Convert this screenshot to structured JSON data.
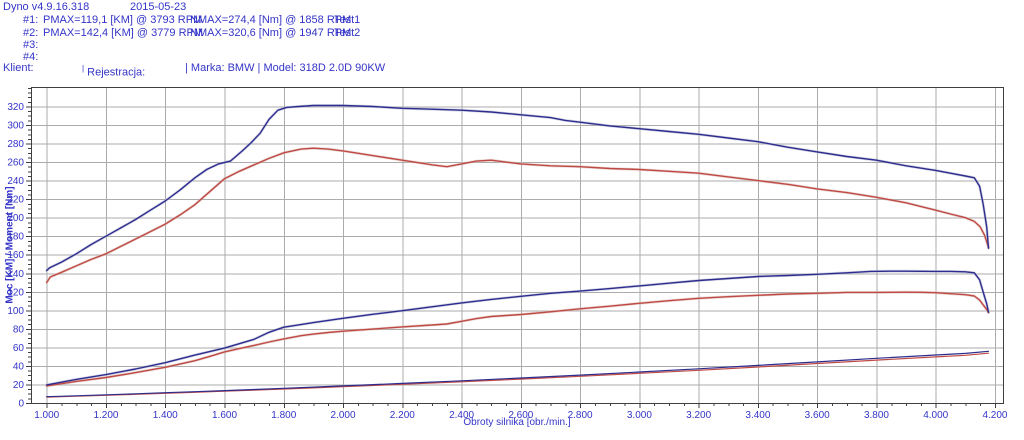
{
  "header": {
    "app_version": "Dyno v4.9.16.318",
    "date": "2015-05-23",
    "runs": [
      {
        "id": "#1:",
        "pmax": "PMAX=119,1 [KM] @ 3793 RPM",
        "nmax": "NMAX=274,4 [Nm] @ 1858 RPM",
        "name": "Test1"
      },
      {
        "id": "#2:",
        "pmax": "PMAX=142,4 [KM] @ 3779 RPM",
        "nmax": "NMAX=320,6 [Nm] @ 1947 RPM",
        "name": "Test2"
      },
      {
        "id": "#3:",
        "pmax": "",
        "nmax": "",
        "name": ""
      },
      {
        "id": "#4:",
        "pmax": "",
        "nmax": "",
        "name": ""
      }
    ],
    "client_row": {
      "klient_label": "Klient:",
      "sep": "|",
      "rejestracja_label": "Rejestracja:",
      "vehicle": "| Marka: BMW | Model: 318D 2.0D 90KW"
    }
  },
  "colors": {
    "text_blue": "#3434c8",
    "curve_blue": "#2d2d8f",
    "curve_red": "#bf4a44",
    "halo_blue": "#b4b4cf",
    "halo_red": "#d9b9b6",
    "grid": "#ababab",
    "frame": "#3f3f3f"
  },
  "chart_data": {
    "type": "line",
    "title": "",
    "xlabel": "Obroty silnika [obr./min.]",
    "ylabel": "Moc [KM] / Moment [Nm]",
    "xlim": [
      947,
      4227
    ],
    "ylim": [
      0,
      341
    ],
    "x_ticks": [
      1000,
      1200,
      1400,
      1600,
      1800,
      2000,
      2200,
      2400,
      2600,
      2800,
      3000,
      3200,
      3400,
      3600,
      3800,
      4000,
      4200
    ],
    "x_tick_labels": [
      "1.000",
      "1.200",
      "1.400",
      "1.600",
      "1.800",
      "2.000",
      "2.200",
      "2.400",
      "2.600",
      "2.800",
      "3.000",
      "3.200",
      "3.400",
      "3.600",
      "3.800",
      "4.000",
      "4.200"
    ],
    "y_ticks": [
      0,
      20,
      40,
      60,
      80,
      100,
      120,
      140,
      160,
      180,
      200,
      220,
      240,
      260,
      280,
      300,
      320
    ],
    "x_minor_step": 50,
    "y_minor_step": 5,
    "grid": true,
    "legend_position": "none",
    "series": [
      {
        "name": "Test2",
        "quantity": "torque",
        "unit": "Nm",
        "color_key": "blue",
        "points": [
          [
            1000,
            143
          ],
          [
            1010,
            146
          ],
          [
            1050,
            152
          ],
          [
            1100,
            161
          ],
          [
            1150,
            171
          ],
          [
            1200,
            180
          ],
          [
            1250,
            189
          ],
          [
            1300,
            198
          ],
          [
            1350,
            208
          ],
          [
            1400,
            218
          ],
          [
            1450,
            230
          ],
          [
            1500,
            243
          ],
          [
            1540,
            252
          ],
          [
            1580,
            258
          ],
          [
            1620,
            261
          ],
          [
            1660,
            272
          ],
          [
            1690,
            281
          ],
          [
            1720,
            291
          ],
          [
            1750,
            306
          ],
          [
            1780,
            316
          ],
          [
            1810,
            319
          ],
          [
            1850,
            320
          ],
          [
            1900,
            321
          ],
          [
            1950,
            321
          ],
          [
            2000,
            321
          ],
          [
            2100,
            320
          ],
          [
            2200,
            318
          ],
          [
            2300,
            317
          ],
          [
            2400,
            316
          ],
          [
            2500,
            314
          ],
          [
            2600,
            311
          ],
          [
            2700,
            308
          ],
          [
            2750,
            305
          ],
          [
            2800,
            303
          ],
          [
            2900,
            299
          ],
          [
            3000,
            296
          ],
          [
            3100,
            293
          ],
          [
            3200,
            290
          ],
          [
            3300,
            286
          ],
          [
            3400,
            282
          ],
          [
            3500,
            276
          ],
          [
            3600,
            271
          ],
          [
            3700,
            266
          ],
          [
            3800,
            262
          ],
          [
            3900,
            256
          ],
          [
            4000,
            251
          ],
          [
            4050,
            248
          ],
          [
            4100,
            245
          ],
          [
            4130,
            243
          ],
          [
            4148,
            234
          ],
          [
            4160,
            215
          ],
          [
            4172,
            190
          ],
          [
            4178,
            167
          ]
        ]
      },
      {
        "name": "Test1",
        "quantity": "torque",
        "unit": "Nm",
        "color_key": "red",
        "points": [
          [
            1000,
            130
          ],
          [
            1012,
            136
          ],
          [
            1050,
            141
          ],
          [
            1100,
            148
          ],
          [
            1150,
            155
          ],
          [
            1200,
            161
          ],
          [
            1250,
            169
          ],
          [
            1300,
            177
          ],
          [
            1350,
            185
          ],
          [
            1400,
            193
          ],
          [
            1450,
            203
          ],
          [
            1500,
            214
          ],
          [
            1550,
            228
          ],
          [
            1600,
            242
          ],
          [
            1650,
            250
          ],
          [
            1700,
            257
          ],
          [
            1750,
            264
          ],
          [
            1800,
            270
          ],
          [
            1858,
            274
          ],
          [
            1900,
            275
          ],
          [
            1950,
            274
          ],
          [
            2000,
            272
          ],
          [
            2100,
            267
          ],
          [
            2200,
            262
          ],
          [
            2300,
            257
          ],
          [
            2350,
            255
          ],
          [
            2400,
            258
          ],
          [
            2450,
            261
          ],
          [
            2500,
            262
          ],
          [
            2550,
            260
          ],
          [
            2600,
            258
          ],
          [
            2700,
            256
          ],
          [
            2800,
            255
          ],
          [
            2900,
            253
          ],
          [
            3000,
            252
          ],
          [
            3100,
            250
          ],
          [
            3200,
            248
          ],
          [
            3300,
            244
          ],
          [
            3400,
            240
          ],
          [
            3500,
            236
          ],
          [
            3600,
            231
          ],
          [
            3700,
            227
          ],
          [
            3800,
            222
          ],
          [
            3900,
            216
          ],
          [
            4000,
            208
          ],
          [
            4050,
            204
          ],
          [
            4100,
            200
          ],
          [
            4130,
            196
          ],
          [
            4150,
            190
          ],
          [
            4165,
            181
          ],
          [
            4178,
            168
          ]
        ]
      },
      {
        "name": "Test2",
        "quantity": "power",
        "unit": "KM",
        "color_key": "blue",
        "points": [
          [
            1000,
            19.5
          ],
          [
            1100,
            25.5
          ],
          [
            1200,
            30.6
          ],
          [
            1300,
            36.7
          ],
          [
            1400,
            43.5
          ],
          [
            1500,
            51.7
          ],
          [
            1600,
            59.2
          ],
          [
            1700,
            68.7
          ],
          [
            1750,
            76.3
          ],
          [
            1800,
            81.8
          ],
          [
            1850,
            84.3
          ],
          [
            1900,
            86.8
          ],
          [
            2000,
            91.4
          ],
          [
            2100,
            95.7
          ],
          [
            2200,
            99.6
          ],
          [
            2300,
            103.8
          ],
          [
            2400,
            108
          ],
          [
            2500,
            111.8
          ],
          [
            2600,
            115.1
          ],
          [
            2700,
            118.4
          ],
          [
            2800,
            120.8
          ],
          [
            2900,
            123.5
          ],
          [
            3000,
            126.4
          ],
          [
            3100,
            129.3
          ],
          [
            3200,
            132.2
          ],
          [
            3300,
            134.4
          ],
          [
            3400,
            136.5
          ],
          [
            3500,
            137.6
          ],
          [
            3600,
            138.9
          ],
          [
            3700,
            140.5
          ],
          [
            3780,
            142
          ],
          [
            3850,
            142.2
          ],
          [
            3900,
            142.2
          ],
          [
            4000,
            142
          ],
          [
            4050,
            142
          ],
          [
            4100,
            141.6
          ],
          [
            4130,
            140.5
          ],
          [
            4148,
            133
          ],
          [
            4160,
            120
          ],
          [
            4172,
            107
          ],
          [
            4178,
            98
          ]
        ]
      },
      {
        "name": "Test1",
        "quantity": "power",
        "unit": "KM",
        "color_key": "red",
        "points": [
          [
            1000,
            18.5
          ],
          [
            1100,
            23.3
          ],
          [
            1200,
            27.5
          ],
          [
            1300,
            32.8
          ],
          [
            1400,
            38.5
          ],
          [
            1500,
            45.7
          ],
          [
            1550,
            50.3
          ],
          [
            1600,
            55.1
          ],
          [
            1650,
            58.7
          ],
          [
            1700,
            62.2
          ],
          [
            1750,
            65.8
          ],
          [
            1800,
            69.2
          ],
          [
            1858,
            72.6
          ],
          [
            1900,
            74.4
          ],
          [
            1950,
            76.1
          ],
          [
            2000,
            77.5
          ],
          [
            2100,
            79.8
          ],
          [
            2200,
            82.1
          ],
          [
            2300,
            84.2
          ],
          [
            2350,
            85.3
          ],
          [
            2400,
            88.2
          ],
          [
            2450,
            91.1
          ],
          [
            2500,
            93.3
          ],
          [
            2550,
            94.4
          ],
          [
            2600,
            95.5
          ],
          [
            2700,
            98.4
          ],
          [
            2800,
            101.7
          ],
          [
            2900,
            104.5
          ],
          [
            3000,
            107.6
          ],
          [
            3100,
            110.4
          ],
          [
            3200,
            113
          ],
          [
            3300,
            114.7
          ],
          [
            3400,
            116.2
          ],
          [
            3500,
            117.6
          ],
          [
            3600,
            118.4
          ],
          [
            3700,
            119.3
          ],
          [
            3800,
            119.4
          ],
          [
            3900,
            119.6
          ],
          [
            3950,
            119.5
          ],
          [
            4000,
            119
          ],
          [
            4100,
            116.9
          ],
          [
            4130,
            115.5
          ],
          [
            4148,
            111
          ],
          [
            4160,
            106
          ],
          [
            4172,
            101
          ],
          [
            4178,
            97.5
          ]
        ]
      },
      {
        "name": "Test2",
        "quantity": "loss_power",
        "unit": "KM",
        "color_key": "blue",
        "points": [
          [
            1000,
            6.8
          ],
          [
            1100,
            7.8
          ],
          [
            1200,
            8.8
          ],
          [
            1300,
            9.9
          ],
          [
            1400,
            11.1
          ],
          [
            1500,
            12.2
          ],
          [
            1600,
            13.4
          ],
          [
            1700,
            14.6
          ],
          [
            1800,
            15.9
          ],
          [
            1900,
            17.2
          ],
          [
            2000,
            18.5
          ],
          [
            2200,
            21.2
          ],
          [
            2400,
            24
          ],
          [
            2600,
            27
          ],
          [
            2800,
            30.1
          ],
          [
            3000,
            33.4
          ],
          [
            3200,
            36.9
          ],
          [
            3400,
            40.6
          ],
          [
            3600,
            44.4
          ],
          [
            3800,
            48.2
          ],
          [
            4000,
            51.8
          ],
          [
            4100,
            53.5
          ],
          [
            4178,
            55.8
          ]
        ]
      },
      {
        "name": "Test1",
        "quantity": "loss_power",
        "unit": "KM",
        "color_key": "red",
        "points": [
          [
            1000,
            6.4
          ],
          [
            1100,
            7.3
          ],
          [
            1200,
            8.3
          ],
          [
            1300,
            9.4
          ],
          [
            1400,
            10.5
          ],
          [
            1500,
            11.6
          ],
          [
            1600,
            12.7
          ],
          [
            1700,
            13.9
          ],
          [
            1800,
            15.1
          ],
          [
            1900,
            16.3
          ],
          [
            2000,
            17.6
          ],
          [
            2200,
            20.2
          ],
          [
            2400,
            22.9
          ],
          [
            2600,
            25.8
          ],
          [
            2800,
            28.8
          ],
          [
            3000,
            32
          ],
          [
            3200,
            35.3
          ],
          [
            3400,
            38.9
          ],
          [
            3600,
            42.6
          ],
          [
            3800,
            46.3
          ],
          [
            4000,
            49.8
          ],
          [
            4100,
            51.5
          ],
          [
            4178,
            53.7
          ]
        ]
      }
    ]
  }
}
